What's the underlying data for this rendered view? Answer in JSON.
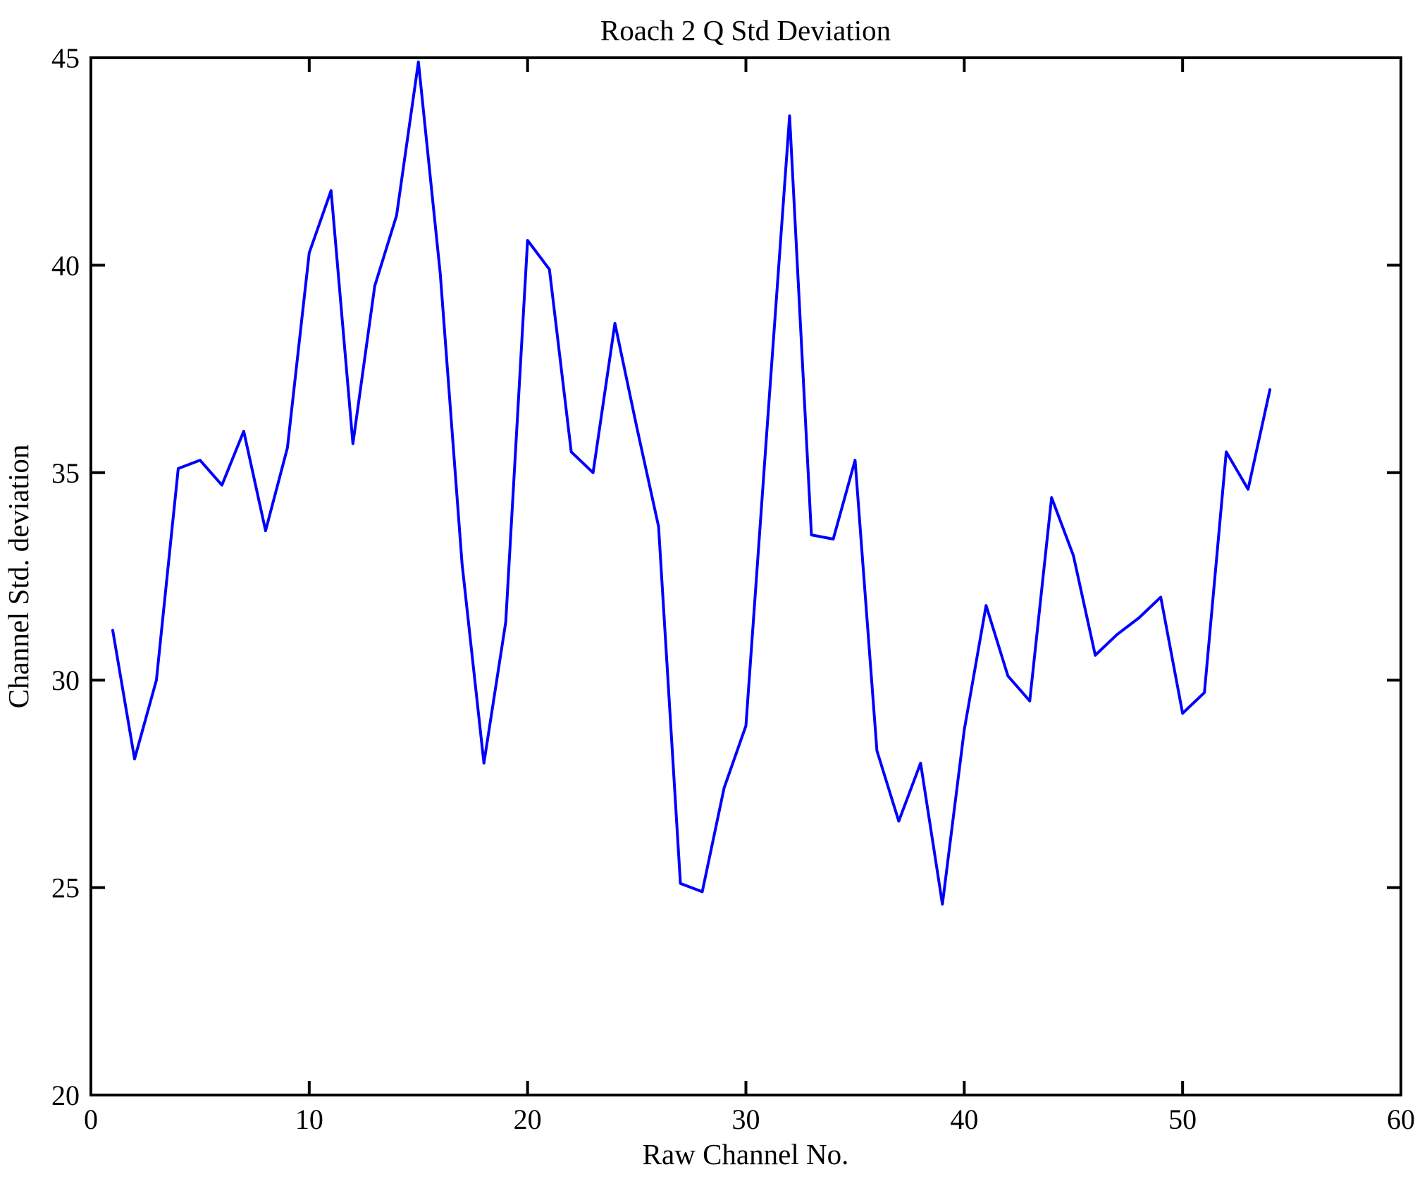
{
  "figure": {
    "title": "Roach 2 Q Std Deviation",
    "xlabel": "Raw Channel No.",
    "ylabel": "Channel Std. deviation"
  },
  "chart_data": {
    "type": "line",
    "title": "Roach 2 Q Std Deviation",
    "xlabel": "Raw Channel No.",
    "ylabel": "Channel Std. deviation",
    "xlim": [
      0,
      60
    ],
    "ylim": [
      20,
      45
    ],
    "x_ticks": [
      0,
      10,
      20,
      30,
      40,
      50,
      60
    ],
    "y_ticks": [
      20,
      25,
      30,
      35,
      40,
      45
    ],
    "grid": false,
    "legend": "none",
    "line_color": "#0000ff",
    "axis_color": "#000000",
    "background_color": "#ffffff",
    "x": [
      1,
      2,
      3,
      4,
      5,
      6,
      7,
      8,
      9,
      10,
      11,
      12,
      13,
      14,
      15,
      16,
      17,
      18,
      19,
      20,
      21,
      22,
      23,
      24,
      25,
      26,
      27,
      28,
      29,
      30,
      31,
      32,
      33,
      34,
      35,
      36,
      37,
      38,
      39,
      40,
      41,
      42,
      43,
      44,
      45,
      46,
      47,
      48,
      49,
      50,
      51,
      52,
      53,
      54
    ],
    "y": [
      31.2,
      28.1,
      30.0,
      35.1,
      35.3,
      34.7,
      36.0,
      33.6,
      35.6,
      40.3,
      41.8,
      35.7,
      39.5,
      41.2,
      44.9,
      39.8,
      32.8,
      28.0,
      31.4,
      40.6,
      39.9,
      35.5,
      35.0,
      38.6,
      36.1,
      33.7,
      25.1,
      24.9,
      27.4,
      28.9,
      36.3,
      43.6,
      33.5,
      33.4,
      35.3,
      28.3,
      26.6,
      28.0,
      24.6,
      28.8,
      31.8,
      30.1,
      29.5,
      34.4,
      33.0,
      30.6,
      31.1,
      31.5,
      32.0,
      29.2,
      29.7,
      35.5,
      34.6,
      37.0
    ]
  }
}
